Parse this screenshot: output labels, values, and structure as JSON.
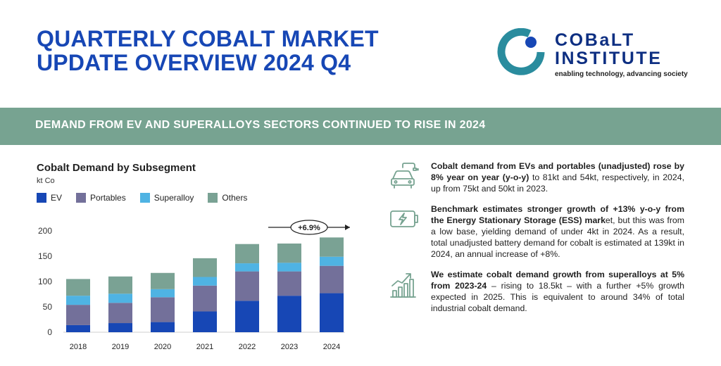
{
  "header": {
    "title_line1": "QUARTERLY COBALT MARKET",
    "title_line2": "UPDATE OVERVIEW 2024 Q4"
  },
  "logo": {
    "name_line1": "COBaLT",
    "name_line2": "INSTITUTE",
    "tagline": "enabling technology, advancing society",
    "colors": {
      "ring": "#2a8c9e",
      "dot": "#1747b5",
      "text": "#0e2f82"
    }
  },
  "banner": {
    "text": "DEMAND FROM EV AND SUPERALLOYS SECTORS CONTINUED TO RISE IN 2024"
  },
  "chart_data": {
    "type": "bar",
    "stacked": true,
    "title": "Cobalt Demand by Subsegment",
    "unit": "kt Co",
    "categories": [
      "2018",
      "2019",
      "2020",
      "2021",
      "2022",
      "2023",
      "2024"
    ],
    "series": [
      {
        "name": "EV",
        "color": "#1747b5",
        "values": [
          14,
          18,
          20,
          41,
          62,
          72,
          77
        ]
      },
      {
        "name": "Portables",
        "color": "#73709a",
        "values": [
          40,
          40,
          49,
          51,
          58,
          48,
          54
        ]
      },
      {
        "name": "Superalloy",
        "color": "#4fb3e3",
        "values": [
          18,
          18,
          16,
          17,
          16,
          17,
          18
        ]
      },
      {
        "name": "Others",
        "color": "#7aa294",
        "values": [
          33,
          34,
          32,
          37,
          38,
          38,
          38
        ]
      }
    ],
    "ylim": [
      0,
      200
    ],
    "yticks": [
      0,
      50,
      100,
      150,
      200
    ],
    "grid": false,
    "legend": "top-left",
    "annotation": {
      "text": "+6.9%",
      "from_category": "2023",
      "to_category": "2024"
    }
  },
  "bullets": [
    {
      "icon": "ev-car-icon",
      "bold": "Cobalt demand from EVs and portables (unadjusted) rose by 8% year on year (y-o-y)",
      "text": " to 81kt and 54kt, respectively, in 2024, up from 75kt and 50kt in 2023."
    },
    {
      "icon": "battery-charging-icon",
      "bold": "Benchmark estimates stronger growth of +13% y-o-y from the Energy Stationary Storage (ESS) mark",
      "text": "et, but this was from a low base, yielding demand of under 4kt in 2024. As a result, total unadjusted battery demand for cobalt is estimated at 139kt in 2024, an annual increase of +8%."
    },
    {
      "icon": "growth-chart-icon",
      "bold": "We estimate cobalt demand growth from superalloys at 5% from 2023-24",
      "text": " – rising to 18.5kt – with a further +5% growth expected in 2025. This is equivalent to around 34% of total industrial cobalt demand."
    }
  ],
  "icon_color": "#77a391"
}
